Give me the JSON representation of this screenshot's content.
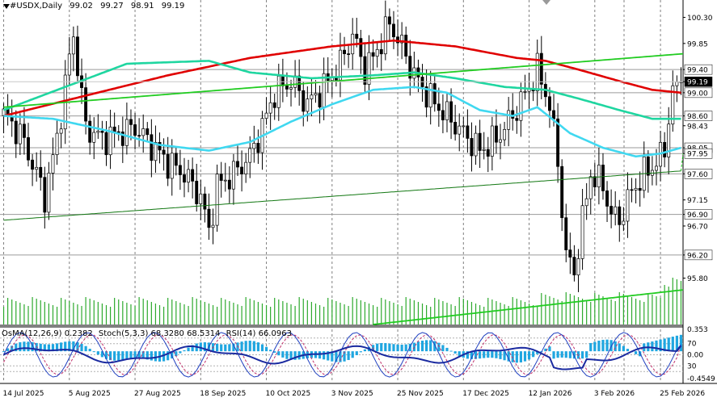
{
  "header": {
    "symbol": "#USDX,Daily",
    "open": "99.02",
    "high": "99.27",
    "low": "98.91",
    "close": "99.19"
  },
  "indicator_legend": {
    "osma": "OsMA(12,26,9) 0.2382",
    "stoch": "Stoch(5,3,3) 68.3280 68.5314",
    "rsi": "RSI(14) 66.0963"
  },
  "colors": {
    "up_candle": "#ffffff",
    "down_candle": "#000000",
    "ema200": "#e00000",
    "ema144": "#1fd6a0",
    "ema50": "#40d8f0",
    "trendline": "#22cc22",
    "volume": "#2eaa2e",
    "osma": "#1fa6e0",
    "stoch_main": "#1a2aa0",
    "stoch_signal": "#c0306a",
    "grid": "#808080"
  },
  "chart_data": {
    "type": "candlestick",
    "title": "#USDX,Daily",
    "ylim": [
      95.0,
      100.6
    ],
    "price_axis_labels": [
      "100.30",
      "99.85",
      "99.40",
      "99.19",
      "99.00",
      "98.60",
      "98.43",
      "98.05",
      "97.95",
      "97.60",
      "97.15",
      "96.90",
      "96.70",
      "96.20",
      "95.80"
    ],
    "horizontal_levels": [
      99.4,
      99.0,
      98.6,
      98.05,
      97.95,
      97.6,
      96.9,
      96.2
    ],
    "current_price": 99.19,
    "x_tick_labels": [
      "14 Jul 2025",
      "5 Aug 2025",
      "27 Aug 2025",
      "18 Sep 2025",
      "10 Oct 2025",
      "3 Nov 2025",
      "25 Nov 2025",
      "17 Dec 2025",
      "12 Jan 2026",
      "3 Feb 2026",
      "25 Feb 2026"
    ],
    "close_path": [
      [
        0,
        98.6
      ],
      [
        4,
        98.3
      ],
      [
        8,
        97.6
      ],
      [
        10,
        97.2
      ],
      [
        13,
        98.2
      ],
      [
        16,
        99.6
      ],
      [
        17,
        100.0
      ],
      [
        20,
        98.4
      ],
      [
        24,
        98.2
      ],
      [
        28,
        98.3
      ],
      [
        32,
        98.4
      ],
      [
        36,
        98.1
      ],
      [
        40,
        97.8
      ],
      [
        44,
        97.6
      ],
      [
        48,
        97.2
      ],
      [
        50,
        96.6
      ],
      [
        52,
        97.4
      ],
      [
        56,
        97.6
      ],
      [
        60,
        97.9
      ],
      [
        63,
        98.4
      ],
      [
        66,
        99.0
      ],
      [
        70,
        99.2
      ],
      [
        74,
        98.8
      ],
      [
        78,
        99.1
      ],
      [
        82,
        99.5
      ],
      [
        85,
        100.0
      ],
      [
        88,
        99.4
      ],
      [
        90,
        99.6
      ],
      [
        94,
        100.2
      ],
      [
        97,
        99.8
      ],
      [
        100,
        99.3
      ],
      [
        104,
        98.9
      ],
      [
        108,
        98.6
      ],
      [
        112,
        98.3
      ],
      [
        116,
        98.0
      ],
      [
        120,
        98.2
      ],
      [
        124,
        98.6
      ],
      [
        128,
        99.1
      ],
      [
        130,
        99.4
      ],
      [
        133,
        98.8
      ],
      [
        135,
        97.8
      ],
      [
        137,
        96.2
      ],
      [
        139,
        95.9
      ],
      [
        141,
        96.8
      ],
      [
        143,
        97.6
      ],
      [
        146,
        97.4
      ],
      [
        148,
        96.9
      ],
      [
        150,
        96.8
      ],
      [
        153,
        97.3
      ],
      [
        156,
        97.6
      ],
      [
        159,
        97.8
      ],
      [
        161,
        98.0
      ],
      [
        162,
        98.6
      ],
      [
        163,
        99.0
      ],
      [
        164,
        99.1
      ],
      [
        165,
        99.19
      ]
    ],
    "series": [
      {
        "name": "",
        "kind": "ema200",
        "x": [
          0,
          20,
          40,
          60,
          80,
          95,
          110,
          125,
          132,
          140,
          150,
          158,
          165
        ],
        "values": [
          98.6,
          98.95,
          99.3,
          99.6,
          99.8,
          99.9,
          99.8,
          99.6,
          99.55,
          99.4,
          99.2,
          99.05,
          99.0
        ]
      },
      {
        "name": "",
        "kind": "ema144",
        "x": [
          0,
          15,
          30,
          50,
          60,
          75,
          90,
          100,
          110,
          122,
          132,
          140,
          150,
          158,
          165
        ],
        "values": [
          98.7,
          99.1,
          99.5,
          99.55,
          99.35,
          99.25,
          99.3,
          99.35,
          99.25,
          99.1,
          99.05,
          98.9,
          98.7,
          98.55,
          98.55
        ]
      },
      {
        "name": "",
        "kind": "ema50",
        "x": [
          0,
          12,
          25,
          38,
          50,
          60,
          70,
          80,
          90,
          100,
          108,
          116,
          124,
          130,
          138,
          146,
          154,
          160,
          165
        ],
        "values": [
          98.6,
          98.55,
          98.35,
          98.1,
          98.0,
          98.15,
          98.5,
          98.8,
          99.05,
          99.1,
          99.0,
          98.7,
          98.6,
          98.75,
          98.3,
          98.05,
          97.9,
          97.95,
          98.05
        ]
      },
      {
        "name": "",
        "kind": "trendline_top",
        "x": [
          0,
          210
        ],
        "values": [
          98.75,
          99.92
        ]
      },
      {
        "name": "",
        "kind": "trendline_mid",
        "x": [
          0,
          165
        ],
        "values": [
          96.8,
          97.65
        ]
      },
      {
        "name": "",
        "kind": "trendline_low",
        "x": [
          90,
          210
        ],
        "values": [
          95.0,
          95.95
        ]
      }
    ],
    "volume_range": [
      0,
      1
    ],
    "osma_range": [
      -0.4549,
      0.353
    ],
    "osma_axis_labels": [
      "0.353",
      "70",
      "0.00",
      "30",
      "-0.4549"
    ],
    "stoch_levels": [
      80,
      70,
      50,
      30,
      20
    ],
    "rsi_last": 66.0963,
    "stoch_main_last": 68.328,
    "stoch_signal_last": 68.5314,
    "osma_last": 0.2382
  }
}
